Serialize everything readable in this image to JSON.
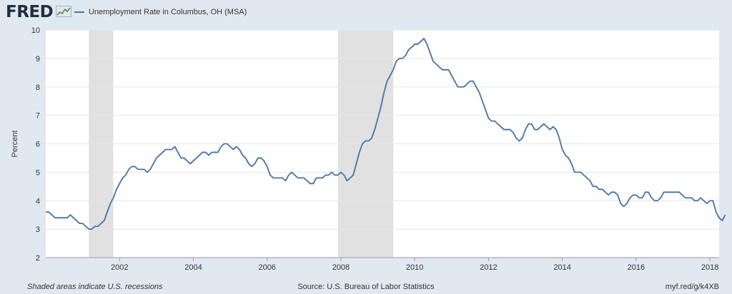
{
  "header": {
    "logo_text": "FRED",
    "logo_icon": "trend-chart-icon",
    "legend_label": "Unemployment Rate in Columbus, OH (MSA)"
  },
  "footer": {
    "note": "Shaded areas indicate U.S. recessions",
    "source": "Source: U.S. Bureau of Labor Statistics",
    "link": "myf.red/g/k4XB"
  },
  "colors": {
    "background": "#e1e9f0",
    "plot_background": "#ffffff",
    "line": "#4572a7",
    "recession": "#e1e1e1",
    "grid": "#e6e6e6"
  },
  "chart_data": {
    "type": "line",
    "title": "",
    "xlabel": "",
    "ylabel": "Percent",
    "xlim": [
      2000.0,
      2018.25
    ],
    "ylim": [
      2,
      10
    ],
    "grid": true,
    "legend": "top-left",
    "y_ticks": [
      "2",
      "3",
      "4",
      "5",
      "6",
      "7",
      "8",
      "9",
      "10"
    ],
    "x_ticks": [
      "2002",
      "2004",
      "2006",
      "2008",
      "2010",
      "2012",
      "2014",
      "2016",
      "2018"
    ],
    "recessions": [
      [
        2001.17,
        2001.83
      ],
      [
        2007.92,
        2009.42
      ]
    ],
    "series": [
      {
        "start": "2000-01",
        "frequency": "monthly",
        "values": [
          3.6,
          3.6,
          3.5,
          3.4,
          3.4,
          3.4,
          3.4,
          3.4,
          3.5,
          3.4,
          3.3,
          3.2,
          3.2,
          3.1,
          3.0,
          3.0,
          3.1,
          3.1,
          3.2,
          3.3,
          3.6,
          3.9,
          4.1,
          4.4,
          4.6,
          4.8,
          4.9,
          5.1,
          5.2,
          5.2,
          5.1,
          5.1,
          5.1,
          5.0,
          5.1,
          5.3,
          5.5,
          5.6,
          5.7,
          5.8,
          5.8,
          5.8,
          5.9,
          5.7,
          5.5,
          5.5,
          5.4,
          5.3,
          5.4,
          5.5,
          5.6,
          5.7,
          5.7,
          5.6,
          5.7,
          5.7,
          5.7,
          5.9,
          6.0,
          6.0,
          5.9,
          5.8,
          5.9,
          5.8,
          5.6,
          5.5,
          5.3,
          5.2,
          5.3,
          5.5,
          5.5,
          5.4,
          5.2,
          4.9,
          4.8,
          4.8,
          4.8,
          4.8,
          4.7,
          4.9,
          5.0,
          4.9,
          4.8,
          4.8,
          4.8,
          4.7,
          4.6,
          4.6,
          4.8,
          4.8,
          4.8,
          4.9,
          4.9,
          5.0,
          4.9,
          4.9,
          5.0,
          4.9,
          4.7,
          4.8,
          4.9,
          5.3,
          5.7,
          6.0,
          6.1,
          6.1,
          6.2,
          6.5,
          6.9,
          7.3,
          7.8,
          8.2,
          8.4,
          8.6,
          8.9,
          9.0,
          9.0,
          9.1,
          9.3,
          9.4,
          9.5,
          9.5,
          9.6,
          9.7,
          9.5,
          9.2,
          8.9,
          8.8,
          8.7,
          8.6,
          8.6,
          8.6,
          8.4,
          8.2,
          8.0,
          8.0,
          8.0,
          8.1,
          8.2,
          8.2,
          8.0,
          7.8,
          7.5,
          7.2,
          6.9,
          6.8,
          6.8,
          6.7,
          6.6,
          6.5,
          6.5,
          6.5,
          6.4,
          6.2,
          6.1,
          6.2,
          6.5,
          6.7,
          6.7,
          6.5,
          6.5,
          6.6,
          6.7,
          6.6,
          6.5,
          6.6,
          6.5,
          6.2,
          5.8,
          5.6,
          5.5,
          5.3,
          5.0,
          5.0,
          5.0,
          4.9,
          4.8,
          4.7,
          4.5,
          4.5,
          4.4,
          4.4,
          4.3,
          4.2,
          4.3,
          4.3,
          4.2,
          3.9,
          3.8,
          3.9,
          4.1,
          4.2,
          4.2,
          4.1,
          4.1,
          4.3,
          4.3,
          4.1,
          4.0,
          4.0,
          4.1,
          4.3,
          4.3,
          4.3,
          4.3,
          4.3,
          4.3,
          4.2,
          4.1,
          4.1,
          4.1,
          4.0,
          4.0,
          4.1,
          4.0,
          3.9,
          4.0,
          4.0,
          3.6,
          3.4,
          3.3,
          3.5
        ]
      }
    ]
  }
}
